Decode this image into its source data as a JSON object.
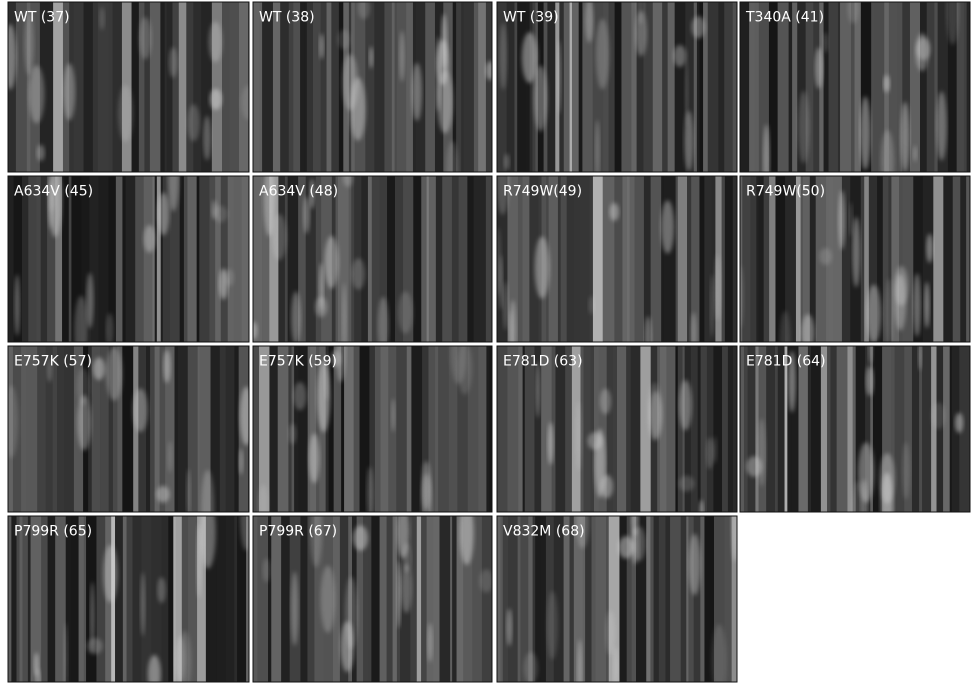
{
  "panels": [
    {
      "label": "WT (37)"
    },
    {
      "label": "WT (38)"
    },
    {
      "label": "WT (39)"
    },
    {
      "label": "T340A (41)"
    },
    {
      "label": "A634V (45)"
    },
    {
      "label": "A634V (48)"
    },
    {
      "label": "R749W(49)"
    },
    {
      "label": "R749W(50)"
    },
    {
      "label": "E757K (57)"
    },
    {
      "label": "E757K (59)"
    },
    {
      "label": "E781D (63)"
    },
    {
      "label": "E781D (64)"
    },
    {
      "label": "P799R (65)"
    },
    {
      "label": "P799R (67)"
    },
    {
      "label": "V832M (68)"
    }
  ]
}
